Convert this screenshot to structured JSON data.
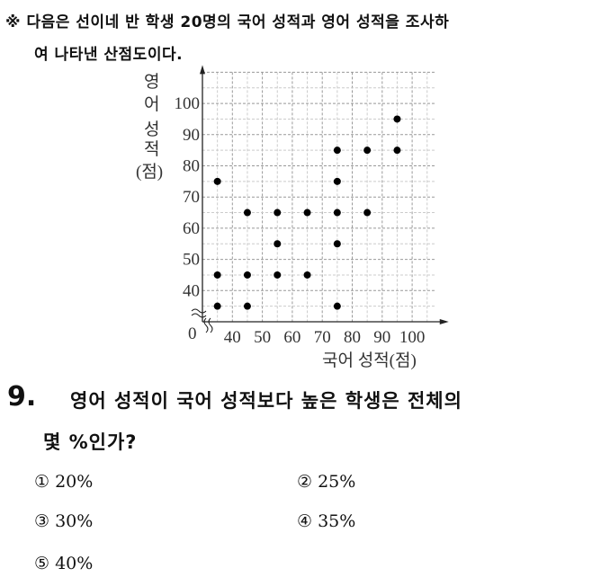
{
  "header": {
    "line1": "※ 다음은 선이네 반 학생 20명의 국어 성적과 영어 성적을 조사하",
    "line2": "여 나타낸 산점도이다."
  },
  "chart_data": {
    "type": "scatter",
    "xlabel": "국어 성적(점)",
    "ylabel": [
      "영",
      "어",
      "성",
      "적",
      "(점)"
    ],
    "origin_label": "0",
    "xlim": [
      30,
      108
    ],
    "ylim": [
      30,
      110
    ],
    "xticks": [
      "40",
      "50",
      "60",
      "70",
      "80",
      "90",
      "100"
    ],
    "yticks": [
      "40",
      "50",
      "60",
      "70",
      "80",
      "90",
      "100"
    ],
    "grid": true,
    "axis_break": true,
    "points": [
      [
        95,
        95
      ],
      [
        95,
        85
      ],
      [
        85,
        85
      ],
      [
        75,
        85
      ],
      [
        35,
        75
      ],
      [
        75,
        75
      ],
      [
        45,
        65
      ],
      [
        55,
        65
      ],
      [
        65,
        65
      ],
      [
        75,
        65
      ],
      [
        85,
        65
      ],
      [
        55,
        55
      ],
      [
        75,
        55
      ],
      [
        35,
        45
      ],
      [
        45,
        45
      ],
      [
        55,
        45
      ],
      [
        65,
        45
      ],
      [
        35,
        35
      ],
      [
        45,
        35
      ],
      [
        75,
        35
      ]
    ]
  },
  "question": {
    "number": "9.",
    "line1": "영어 성적이 국어 성적보다 높은 학생은 전체의",
    "line2": "몇 %인가?"
  },
  "options": [
    {
      "mark": "①",
      "text": "20%"
    },
    {
      "mark": "②",
      "text": "25%"
    },
    {
      "mark": "③",
      "text": "30%"
    },
    {
      "mark": "④",
      "text": "35%"
    },
    {
      "mark": "⑤",
      "text": "40%"
    }
  ]
}
